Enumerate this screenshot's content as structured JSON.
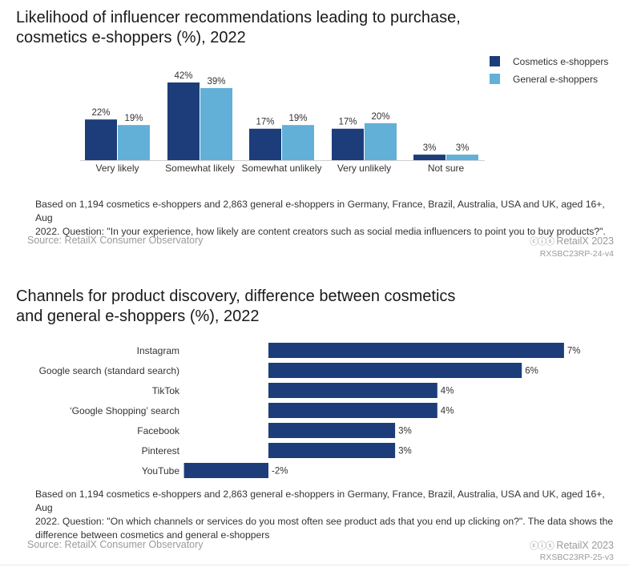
{
  "colors": {
    "cosmetics": "#1c3d7a",
    "general": "#62b0d8"
  },
  "chart1": {
    "title_line1": "Likelihood of influencer recommendations leading to purchase,",
    "title_line2": "cosmetics e-shoppers (%), 2022",
    "note_line1": "Based on 1,194 cosmetics e-shoppers and 2,863 general e-shoppers in Germany, France, Brazil, Australia, USA and UK, aged 16+, Aug",
    "note_line2": "2022. Question: \"In your experience, how likely are content creators such as social media influencers to point you to buy products?\".",
    "source": "Source: RetailX Consumer Observatory",
    "credit": "RetailX 2023",
    "credit_id": "RXSBC23RP-24-v4"
  },
  "chart2": {
    "title_line1": "Channels for product discovery, difference between cosmetics",
    "title_line2": "and general e-shoppers (%), 2022",
    "note_line1": "Based on 1,194 cosmetics e-shoppers and 2,863 general e-shoppers in Germany, France, Brazil, Australia, USA and UK, aged 16+, Aug",
    "note_line2": "2022. Question: \"On which channels or services do you most often see product ads that you end up clicking on?\". The data shows the",
    "note_line3": "difference between cosmetics and general e-shoppers",
    "source": "Source: RetailX Consumer Observatory",
    "credit": "RetailX 2023",
    "credit_id": "RXSBC23RP-25-v3"
  },
  "chart_data": [
    {
      "type": "bar",
      "title": "Likelihood of influencer recommendations leading to purchase, cosmetics e-shoppers (%), 2022",
      "categories": [
        "Very likely",
        "Somewhat likely",
        "Somewhat unlikely",
        "Very unlikely",
        "Not sure"
      ],
      "series": [
        {
          "name": "Cosmetics e-shoppers",
          "values": [
            22,
            42,
            17,
            17,
            3
          ],
          "labels": [
            "22%",
            "42%",
            "17%",
            "17%",
            "3%"
          ]
        },
        {
          "name": "General e-shoppers",
          "values": [
            19,
            39,
            19,
            20,
            3
          ],
          "labels": [
            "19%",
            "39%",
            "19%",
            "20%",
            "3%"
          ]
        }
      ],
      "ylim": [
        0,
        42
      ],
      "legend": "top-right",
      "grid": false
    },
    {
      "type": "bar",
      "orientation": "horizontal",
      "title": "Channels for product discovery, difference between cosmetics and general e-shoppers (%), 2022",
      "categories": [
        "Instagram",
        "Google search (standard search)",
        "TikTok",
        "‘Google Shopping’ search",
        "Facebook",
        "Pinterest",
        "YouTube"
      ],
      "values": [
        7,
        6,
        4,
        4,
        3,
        3,
        -2
      ],
      "labels": [
        "7%",
        "6%",
        "4%",
        "4%",
        "3%",
        "3%",
        "-2%"
      ],
      "xlim": [
        -2,
        7
      ],
      "grid": false
    }
  ]
}
